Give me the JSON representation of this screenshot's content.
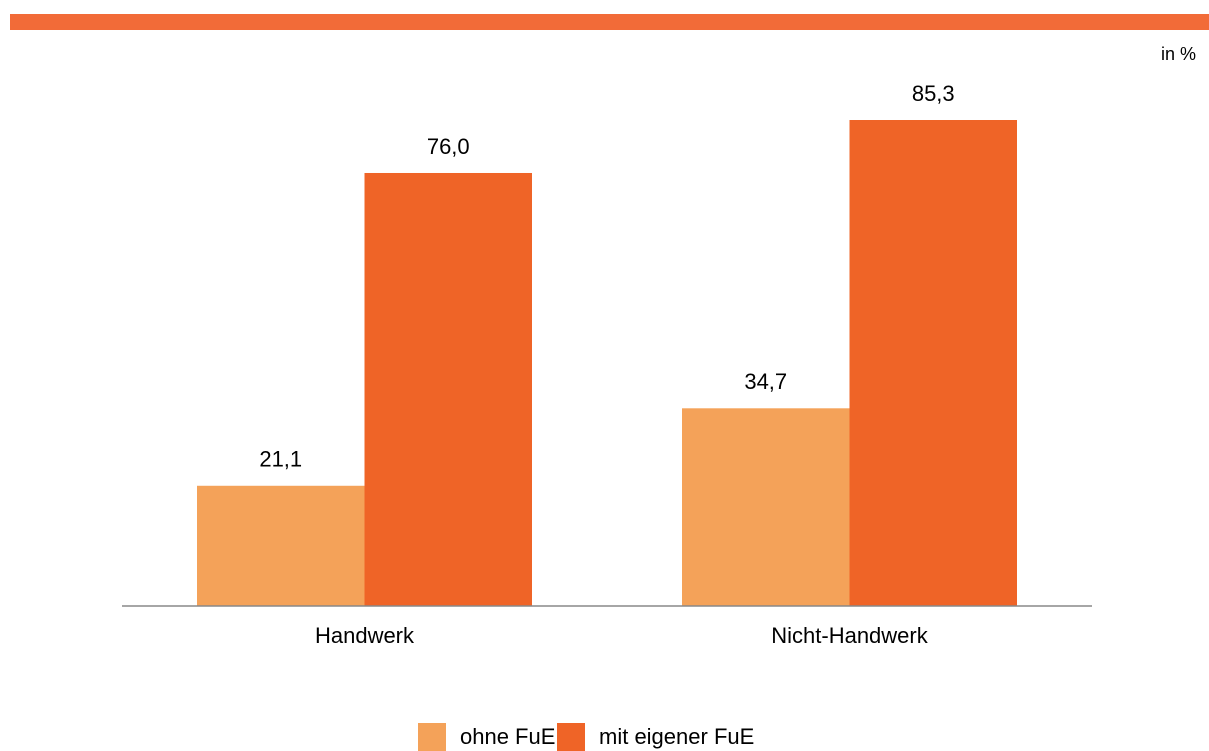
{
  "chart_data": {
    "type": "bar",
    "unit_label": "in %",
    "categories": [
      "Handwerk",
      "Nicht-Handwerk"
    ],
    "series": [
      {
        "name": "ohne FuE",
        "color": "#f4a259",
        "values": [
          21.1,
          34.7
        ],
        "value_labels": [
          "21,1",
          "34,7"
        ]
      },
      {
        "name": "mit eigener FuE",
        "color": "#ef6427",
        "values": [
          76.0,
          85.3
        ],
        "value_labels": [
          "76,0",
          "85,3"
        ]
      }
    ],
    "legend": "bottom"
  }
}
